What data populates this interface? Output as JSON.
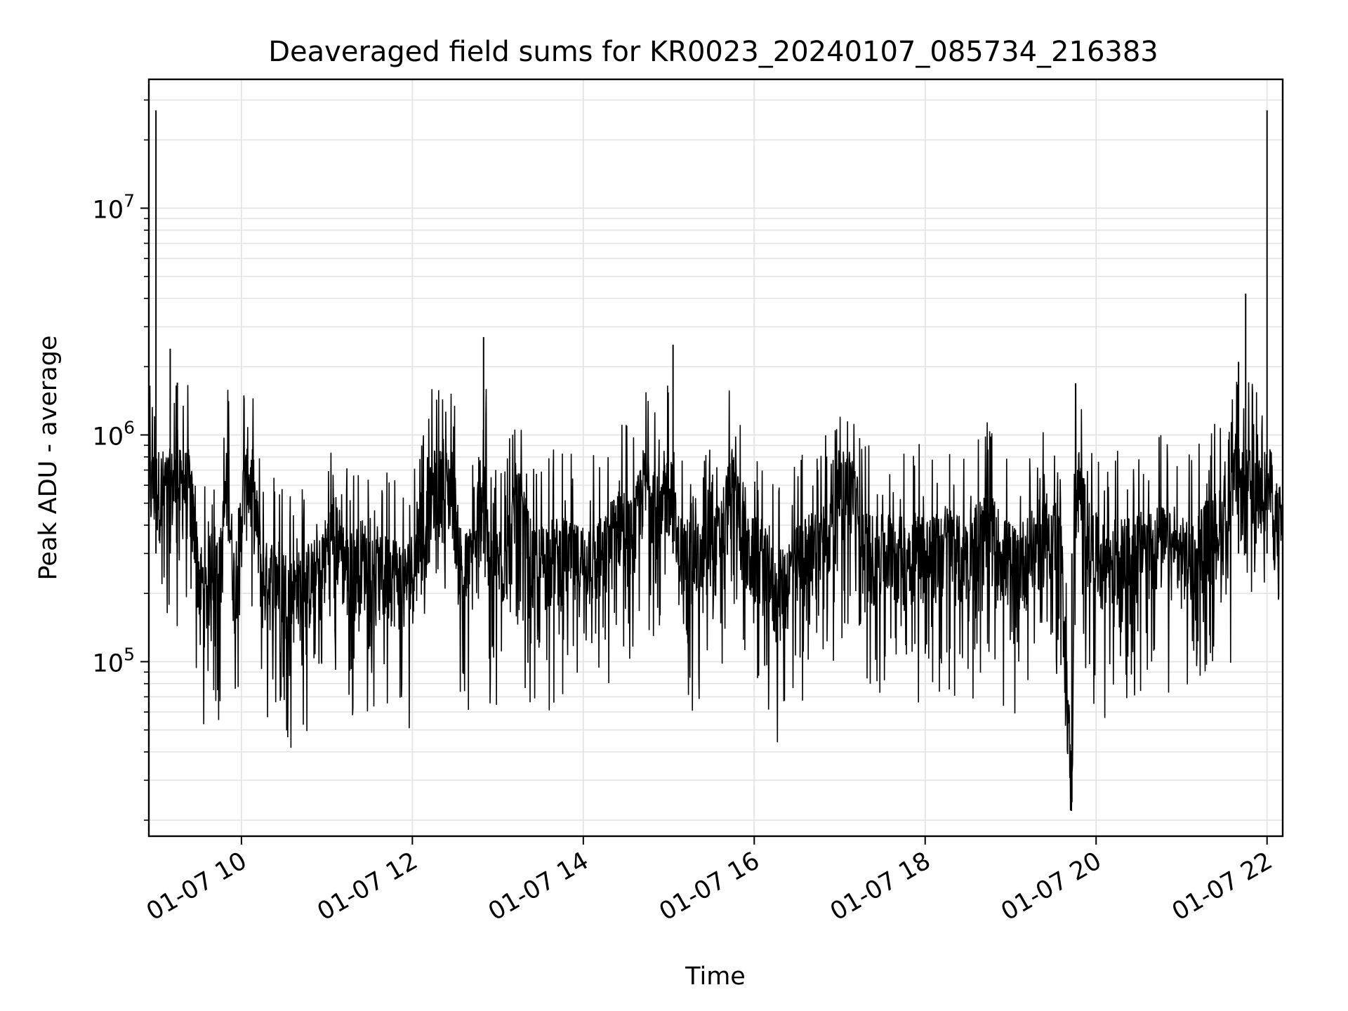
{
  "chart_data": {
    "type": "line",
    "title": "Deaveraged field sums for KR0023_20240107_085734_216383",
    "xlabel": "Time",
    "ylabel": "Peak ADU - average",
    "x_range": [
      "2024-01-07 08:55",
      "2024-01-07 22:11"
    ],
    "ylim": [
      17000,
      37000000
    ],
    "y_scale": "log",
    "grid": true,
    "line_color": "#000000",
    "grid_color": "#e4e4e4",
    "x_ticks": [
      {
        "value": "2024-01-07 10:00",
        "label": "01-07 10"
      },
      {
        "value": "2024-01-07 12:00",
        "label": "01-07 12"
      },
      {
        "value": "2024-01-07 14:00",
        "label": "01-07 14"
      },
      {
        "value": "2024-01-07 16:00",
        "label": "01-07 16"
      },
      {
        "value": "2024-01-07 18:00",
        "label": "01-07 18"
      },
      {
        "value": "2024-01-07 20:00",
        "label": "01-07 20"
      },
      {
        "value": "2024-01-07 22:00",
        "label": "01-07 22"
      }
    ],
    "y_ticks": [
      {
        "value": 100000,
        "base": "10",
        "exp": "5"
      },
      {
        "value": 1000000,
        "base": "10",
        "exp": "6"
      },
      {
        "value": 10000000,
        "base": "10",
        "exp": "7"
      }
    ],
    "series": [
      {
        "x": [
          "2024-01-07 08:55",
          "2024-01-07 09:00",
          "2024-01-07 09:03",
          "2024-01-07 09:05",
          "2024-01-07 09:10",
          "2024-01-07 09:15",
          "2024-01-07 09:20",
          "2024-01-07 09:25",
          "2024-01-07 09:30",
          "2024-01-07 09:35",
          "2024-01-07 09:40",
          "2024-01-07 09:45",
          "2024-01-07 09:50",
          "2024-01-07 09:55",
          "2024-01-07 10:05",
          "2024-01-07 10:15",
          "2024-01-07 10:25",
          "2024-01-07 10:35",
          "2024-01-07 10:45",
          "2024-01-07 10:55",
          "2024-01-07 11:05",
          "2024-01-07 11:15",
          "2024-01-07 11:25",
          "2024-01-07 11:35",
          "2024-01-07 11:45",
          "2024-01-07 11:55",
          "2024-01-07 12:05",
          "2024-01-07 12:15",
          "2024-01-07 12:25",
          "2024-01-07 12:35",
          "2024-01-07 12:45",
          "2024-01-07 12:50",
          "2024-01-07 12:53",
          "2024-01-07 12:55",
          "2024-01-07 13:05",
          "2024-01-07 13:15",
          "2024-01-07 13:25",
          "2024-01-07 13:35",
          "2024-01-07 13:45",
          "2024-01-07 13:55",
          "2024-01-07 14:05",
          "2024-01-07 14:15",
          "2024-01-07 14:25",
          "2024-01-07 14:35",
          "2024-01-07 14:45",
          "2024-01-07 14:55",
          "2024-01-07 15:03",
          "2024-01-07 15:05",
          "2024-01-07 15:15",
          "2024-01-07 15:25",
          "2024-01-07 15:35",
          "2024-01-07 15:45",
          "2024-01-07 15:55",
          "2024-01-07 16:05",
          "2024-01-07 16:15",
          "2024-01-07 16:25",
          "2024-01-07 16:35",
          "2024-01-07 16:45",
          "2024-01-07 16:55",
          "2024-01-07 17:05",
          "2024-01-07 17:15",
          "2024-01-07 17:25",
          "2024-01-07 17:35",
          "2024-01-07 17:45",
          "2024-01-07 17:55",
          "2024-01-07 18:05",
          "2024-01-07 18:15",
          "2024-01-07 18:25",
          "2024-01-07 18:35",
          "2024-01-07 18:45",
          "2024-01-07 18:55",
          "2024-01-07 19:05",
          "2024-01-07 19:15",
          "2024-01-07 19:25",
          "2024-01-07 19:35",
          "2024-01-07 19:43",
          "2024-01-07 19:45",
          "2024-01-07 19:55",
          "2024-01-07 20:05",
          "2024-01-07 20:15",
          "2024-01-07 20:25",
          "2024-01-07 20:35",
          "2024-01-07 20:45",
          "2024-01-07 20:55",
          "2024-01-07 21:05",
          "2024-01-07 21:15",
          "2024-01-07 21:25",
          "2024-01-07 21:35",
          "2024-01-07 21:40",
          "2024-01-07 21:45",
          "2024-01-07 21:50",
          "2024-01-07 21:55",
          "2024-01-07 22:00",
          "2024-01-07 22:05",
          "2024-01-07 22:11"
        ],
        "y": [
          400000,
          27000000,
          500000,
          900000,
          2400000,
          1700000,
          1000000,
          500000,
          250000,
          200000,
          300000,
          250000,
          650000,
          220000,
          900000,
          230000,
          250000,
          200000,
          230000,
          250000,
          400000,
          250000,
          300000,
          240000,
          260000,
          230000,
          300000,
          600000,
          900000,
          250000,
          300000,
          2700000,
          280000,
          250000,
          300000,
          500000,
          260000,
          300000,
          300000,
          280000,
          300000,
          300000,
          450000,
          350000,
          800000,
          400000,
          2500000,
          320000,
          300000,
          280000,
          350000,
          650000,
          300000,
          300000,
          200000,
          250000,
          300000,
          350000,
          400000,
          1000000,
          350000,
          300000,
          320000,
          300000,
          330000,
          300000,
          350000,
          300000,
          350000,
          400000,
          300000,
          280000,
          320000,
          400000,
          350000,
          24000,
          800000,
          350000,
          280000,
          300000,
          300000,
          330000,
          350000,
          300000,
          300000,
          350000,
          400000,
          420000,
          2100000,
          4200000,
          500000,
          600000,
          27000000,
          450000,
          400000
        ]
      }
    ]
  }
}
